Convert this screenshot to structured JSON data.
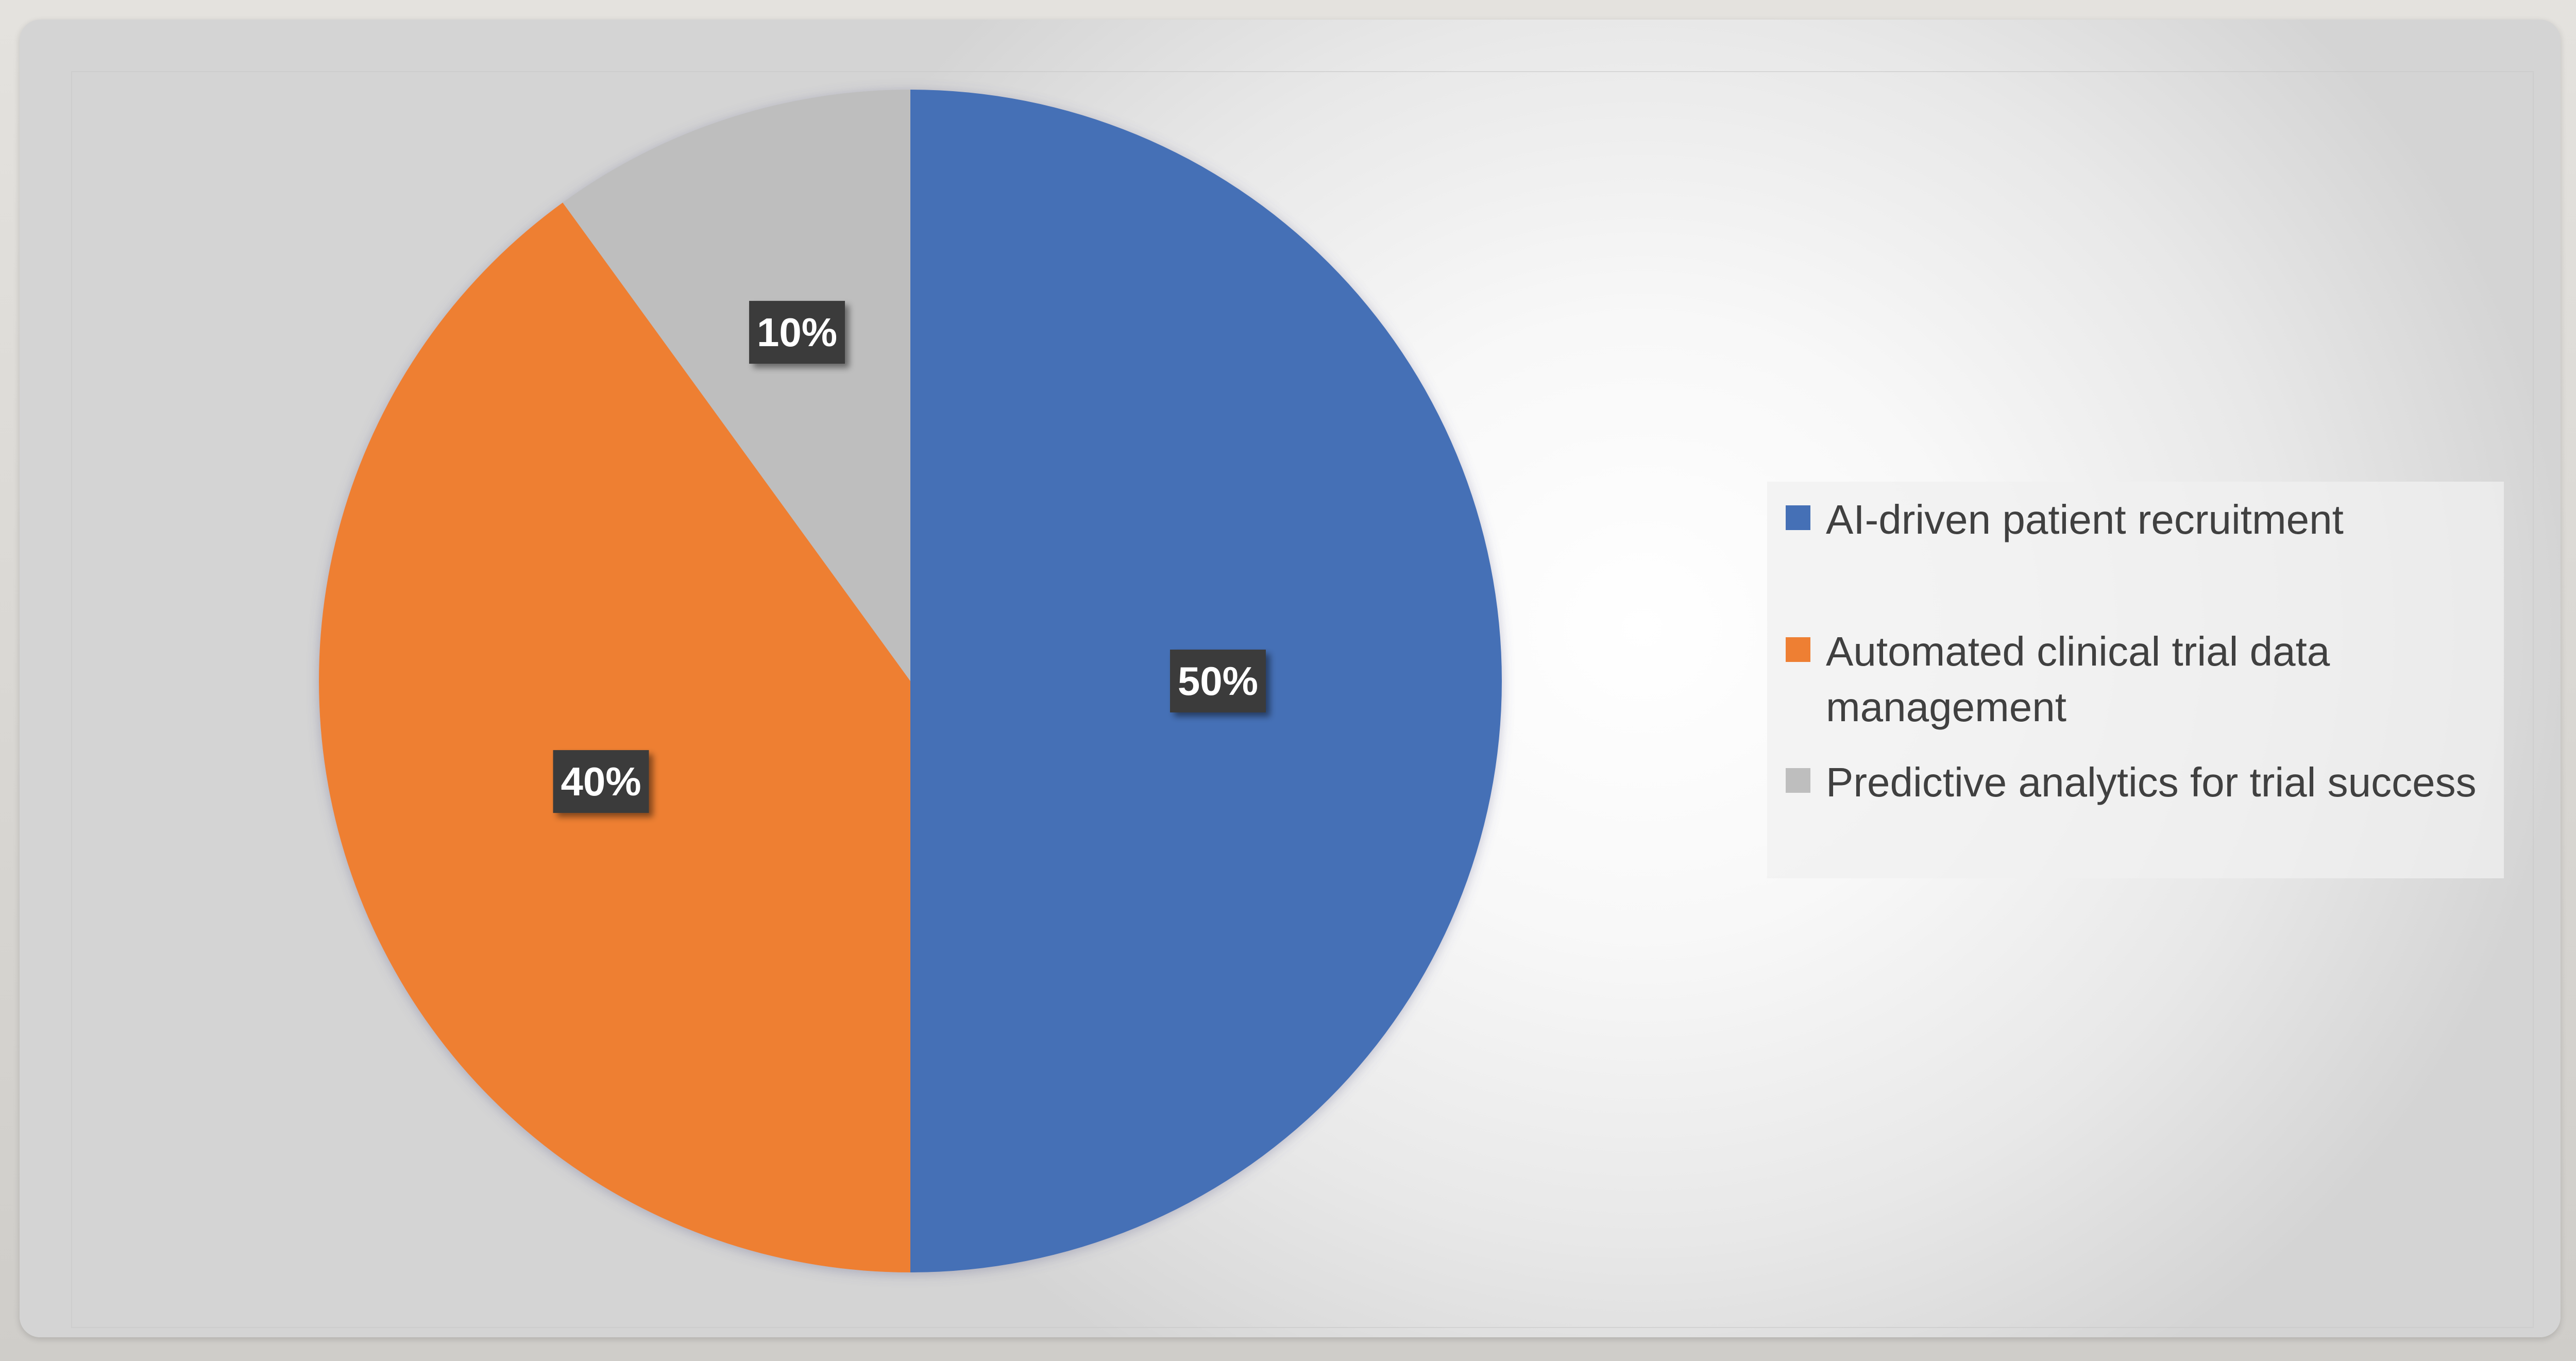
{
  "chart_data": {
    "type": "pie",
    "categories": [
      "AI-driven patient recruitment",
      "Automated clinical trial data management",
      "Predictive analytics for trial success"
    ],
    "values": [
      50,
      40,
      10
    ],
    "data_labels": [
      "50%",
      "40%",
      "10%"
    ],
    "colors": [
      "#4570B6",
      "#EE7F33",
      "#BEBEBE"
    ],
    "start_angle_deg": 0,
    "direction": "clockwise",
    "legend_position": "right",
    "label_box_color": "#3B3B3B",
    "label_text_color": "#FFFFFF"
  },
  "legend": {
    "items": [
      {
        "label": "AI-driven patient recruitment",
        "color": "#4570B6"
      },
      {
        "label": "Automated clinical trial data management",
        "color": "#EE7F33"
      },
      {
        "label": "Predictive analytics for trial success",
        "color": "#BEBEBE"
      }
    ]
  }
}
